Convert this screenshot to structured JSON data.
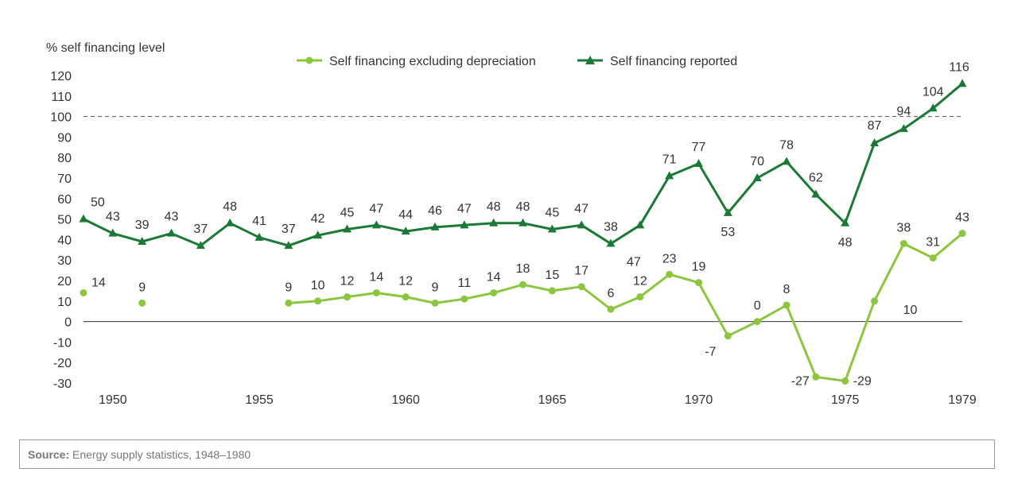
{
  "chart_data": {
    "type": "line",
    "ylabel": "% self financing level",
    "ylim": [
      -30,
      120
    ],
    "yticks": [
      -30,
      -20,
      -10,
      0,
      10,
      20,
      30,
      40,
      50,
      60,
      70,
      80,
      90,
      100,
      110,
      120
    ],
    "xlim": [
      1949,
      1979
    ],
    "xticks": [
      1950,
      1955,
      1960,
      1965,
      1970,
      1975,
      1979
    ],
    "reference_line": {
      "y": 100,
      "style": "dashed"
    },
    "legend_position": "top-center",
    "series": [
      {
        "name": "Self financing excluding depreciation",
        "color": "#8CC63F",
        "marker": "circle",
        "x": [
          1949,
          1951,
          1956,
          1957,
          1958,
          1959,
          1960,
          1961,
          1962,
          1963,
          1964,
          1965,
          1966,
          1967,
          1968,
          1969,
          1970,
          1971,
          1972,
          1973,
          1974,
          1975,
          1976,
          1977,
          1978,
          1979
        ],
        "y": [
          14,
          9,
          9,
          10,
          12,
          14,
          12,
          9,
          11,
          14,
          18,
          15,
          17,
          6,
          12,
          23,
          19,
          -7,
          0,
          8,
          -27,
          -29,
          10,
          38,
          31,
          43
        ],
        "connect": [
          false,
          false,
          true,
          true,
          true,
          true,
          true,
          true,
          true,
          true,
          true,
          true,
          true,
          true,
          true,
          true,
          true,
          true,
          true,
          true,
          true,
          true,
          true,
          true,
          true,
          true
        ]
      },
      {
        "name": "Self financing reported",
        "color": "#1A7A35",
        "marker": "triangle",
        "x": [
          1949,
          1950,
          1951,
          1952,
          1953,
          1954,
          1955,
          1956,
          1957,
          1958,
          1959,
          1960,
          1961,
          1962,
          1963,
          1964,
          1965,
          1966,
          1967,
          1968,
          1969,
          1970,
          1971,
          1972,
          1973,
          1974,
          1975,
          1976,
          1977,
          1978,
          1979
        ],
        "y": [
          50,
          43,
          39,
          43,
          37,
          48,
          41,
          37,
          42,
          45,
          47,
          44,
          46,
          47,
          48,
          48,
          45,
          47,
          38,
          47,
          71,
          77,
          53,
          70,
          78,
          62,
          48,
          87,
          94,
          104,
          116
        ]
      }
    ]
  },
  "source": {
    "label": "Source:",
    "text": "Energy supply statistics, 1948–1980"
  }
}
